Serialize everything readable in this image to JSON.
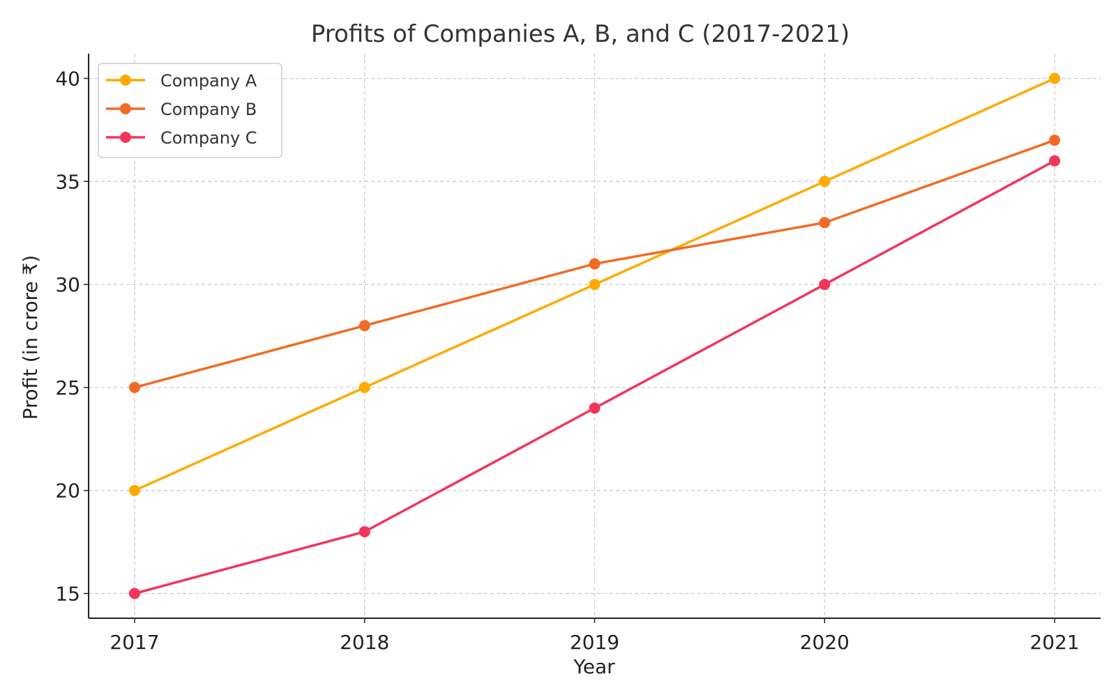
{
  "chart_data": {
    "type": "line",
    "title": "Profits of Companies A, B, and C (2017-2021)",
    "xlabel": "Year",
    "ylabel": "Profit (in crore ₹)",
    "x": [
      "2017",
      "2018",
      "2019",
      "2020",
      "2021"
    ],
    "yticks": [
      "15",
      "20",
      "25",
      "30",
      "35",
      "40"
    ],
    "ylim": [
      13.8,
      41.2
    ],
    "grid": true,
    "legend_position": "top-left",
    "series": [
      {
        "name": "Company A",
        "color": "#FFAA00",
        "values": [
          20,
          25,
          30,
          35,
          40
        ]
      },
      {
        "name": "Company B",
        "color": "#F26B24",
        "values": [
          25,
          28,
          31,
          33,
          37
        ]
      },
      {
        "name": "Company C",
        "color": "#F2355B",
        "values": [
          15,
          18,
          24,
          30,
          36
        ]
      }
    ]
  }
}
